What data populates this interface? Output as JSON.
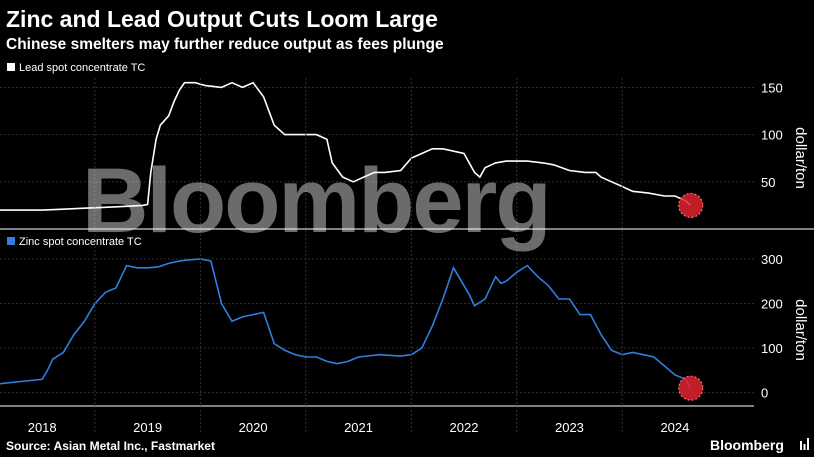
{
  "title": "Zinc and Lead Output Cuts Loom Large",
  "subtitle": "Chinese smelters may further reduce output as fees plunge",
  "source": "Source: Asian Metal Inc., Fastmarket",
  "brand": "Bloomberg",
  "watermark": "Bloomberg",
  "colors": {
    "lead_line": "#ffffff",
    "zinc_line": "#2f7fe0",
    "highlight": "#e0232f",
    "background": "#000000"
  },
  "chart_data": [
    {
      "type": "line",
      "legend": "Lead spot concentrate TC",
      "ylabel": "dollar/ton",
      "ylim": [
        0,
        160
      ],
      "yticks": [
        50,
        100,
        150
      ],
      "ytick_labels": [
        "50",
        "100",
        "150"
      ],
      "xlim": [
        2017.6,
        2024.75
      ],
      "series": [
        {
          "name": "Lead spot concentrate TC",
          "x": [
            2017.6,
            2018.0,
            2018.2,
            2018.4,
            2018.6,
            2018.8,
            2018.95,
            2019.0,
            2019.03,
            2019.08,
            2019.12,
            2019.2,
            2019.25,
            2019.3,
            2019.35,
            2019.45,
            2019.55,
            2019.7,
            2019.8,
            2019.9,
            2020.0,
            2020.1,
            2020.2,
            2020.3,
            2020.45,
            2020.6,
            2020.7,
            2020.75,
            2020.85,
            2020.95,
            2021.05,
            2021.15,
            2021.25,
            2021.4,
            2021.5,
            2021.6,
            2021.7,
            2021.8,
            2022.0,
            2022.1,
            2022.15,
            2022.2,
            2022.3,
            2022.4,
            2022.5,
            2022.6,
            2022.75,
            2022.85,
            2023.0,
            2023.15,
            2023.25,
            2023.3,
            2023.4,
            2023.5,
            2023.6,
            2023.75,
            2023.9,
            2024.0,
            2024.1,
            2024.15
          ],
          "values": [
            20,
            20,
            21,
            22,
            23,
            24,
            25,
            26,
            60,
            95,
            110,
            120,
            135,
            147,
            155,
            155,
            152,
            150,
            155,
            150,
            155,
            140,
            110,
            100,
            100,
            100,
            95,
            70,
            55,
            50,
            55,
            60,
            60,
            62,
            75,
            80,
            85,
            85,
            80,
            60,
            55,
            65,
            70,
            72,
            72,
            72,
            70,
            68,
            62,
            60,
            60,
            55,
            50,
            45,
            40,
            38,
            35,
            35,
            30,
            25
          ]
        }
      ]
    },
    {
      "type": "line",
      "legend": "Zinc spot concentrate TC",
      "ylabel": "dollar/ton",
      "ylim": [
        -30,
        320
      ],
      "yticks": [
        0,
        100,
        200,
        300
      ],
      "ytick_labels": [
        "0",
        "100",
        "200",
        "300"
      ],
      "xlim": [
        2017.6,
        2024.75
      ],
      "xticks": [
        2018,
        2019,
        2020,
        2021,
        2022,
        2023,
        2024
      ],
      "xtick_labels": [
        "2018",
        "2019",
        "2020",
        "2021",
        "2022",
        "2023",
        "2024"
      ],
      "series": [
        {
          "name": "Zinc spot concentrate TC",
          "x": [
            2017.6,
            2017.8,
            2018.0,
            2018.05,
            2018.1,
            2018.2,
            2018.3,
            2018.4,
            2018.5,
            2018.6,
            2018.7,
            2018.8,
            2018.9,
            2019.0,
            2019.1,
            2019.2,
            2019.3,
            2019.4,
            2019.5,
            2019.6,
            2019.7,
            2019.75,
            2019.8,
            2019.9,
            2020.0,
            2020.1,
            2020.2,
            2020.3,
            2020.4,
            2020.5,
            2020.6,
            2020.7,
            2020.8,
            2020.9,
            2021.0,
            2021.2,
            2021.4,
            2021.5,
            2021.6,
            2021.7,
            2021.8,
            2021.9,
            2022.0,
            2022.05,
            2022.1,
            2022.2,
            2022.3,
            2022.35,
            2022.4,
            2022.5,
            2022.6,
            2022.7,
            2022.8,
            2022.9,
            2023.0,
            2023.1,
            2023.2,
            2023.3,
            2023.4,
            2023.5,
            2023.6,
            2023.7,
            2023.8,
            2023.9,
            2024.0,
            2024.1,
            2024.15
          ],
          "values": [
            20,
            25,
            30,
            50,
            75,
            90,
            130,
            160,
            200,
            225,
            235,
            285,
            280,
            280,
            282,
            290,
            295,
            298,
            300,
            295,
            200,
            180,
            160,
            170,
            175,
            180,
            110,
            95,
            85,
            80,
            80,
            70,
            65,
            70,
            80,
            85,
            82,
            85,
            100,
            150,
            210,
            280,
            240,
            220,
            195,
            210,
            260,
            245,
            250,
            270,
            285,
            260,
            240,
            210,
            210,
            175,
            175,
            130,
            95,
            85,
            90,
            85,
            80,
            60,
            40,
            30,
            10
          ]
        }
      ]
    }
  ]
}
